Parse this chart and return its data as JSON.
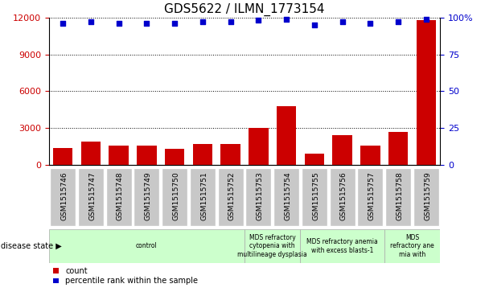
{
  "title": "GDS5622 / ILMN_1773154",
  "samples": [
    "GSM1515746",
    "GSM1515747",
    "GSM1515748",
    "GSM1515749",
    "GSM1515750",
    "GSM1515751",
    "GSM1515752",
    "GSM1515753",
    "GSM1515754",
    "GSM1515755",
    "GSM1515756",
    "GSM1515757",
    "GSM1515758",
    "GSM1515759"
  ],
  "counts": [
    1400,
    1900,
    1600,
    1600,
    1300,
    1700,
    1700,
    3000,
    4800,
    900,
    2400,
    1600,
    2700,
    11800
  ],
  "percentile_ranks": [
    96,
    97,
    96,
    96,
    96,
    97,
    97,
    98,
    99,
    95,
    97,
    96,
    97,
    99
  ],
  "bar_color": "#cc0000",
  "dot_color": "#0000cc",
  "ylim_left": [
    0,
    12000
  ],
  "ylim_right": [
    0,
    100
  ],
  "yticks_left": [
    0,
    3000,
    6000,
    9000,
    12000
  ],
  "yticks_right": [
    0,
    25,
    50,
    75,
    100
  ],
  "disease_groups": [
    {
      "label": "control",
      "start": 0,
      "end": 7,
      "color": "#ccffcc"
    },
    {
      "label": "MDS refractory\ncytopenia with\nmultilineage dysplasia",
      "start": 7,
      "end": 9,
      "color": "#ccffcc"
    },
    {
      "label": "MDS refractory anemia\nwith excess blasts-1",
      "start": 9,
      "end": 12,
      "color": "#ccffcc"
    },
    {
      "label": "MDS\nrefractory ane\nmia with",
      "start": 12,
      "end": 14,
      "color": "#ccffcc"
    }
  ],
  "disease_state_label": "disease state",
  "legend_count_label": "count",
  "legend_pct_label": "percentile rank within the sample",
  "background_color": "#ffffff",
  "tick_bg_color": "#c8c8c8",
  "title_fontsize": 11,
  "tick_label_fontsize": 6.5,
  "axis_label_fontsize": 8
}
